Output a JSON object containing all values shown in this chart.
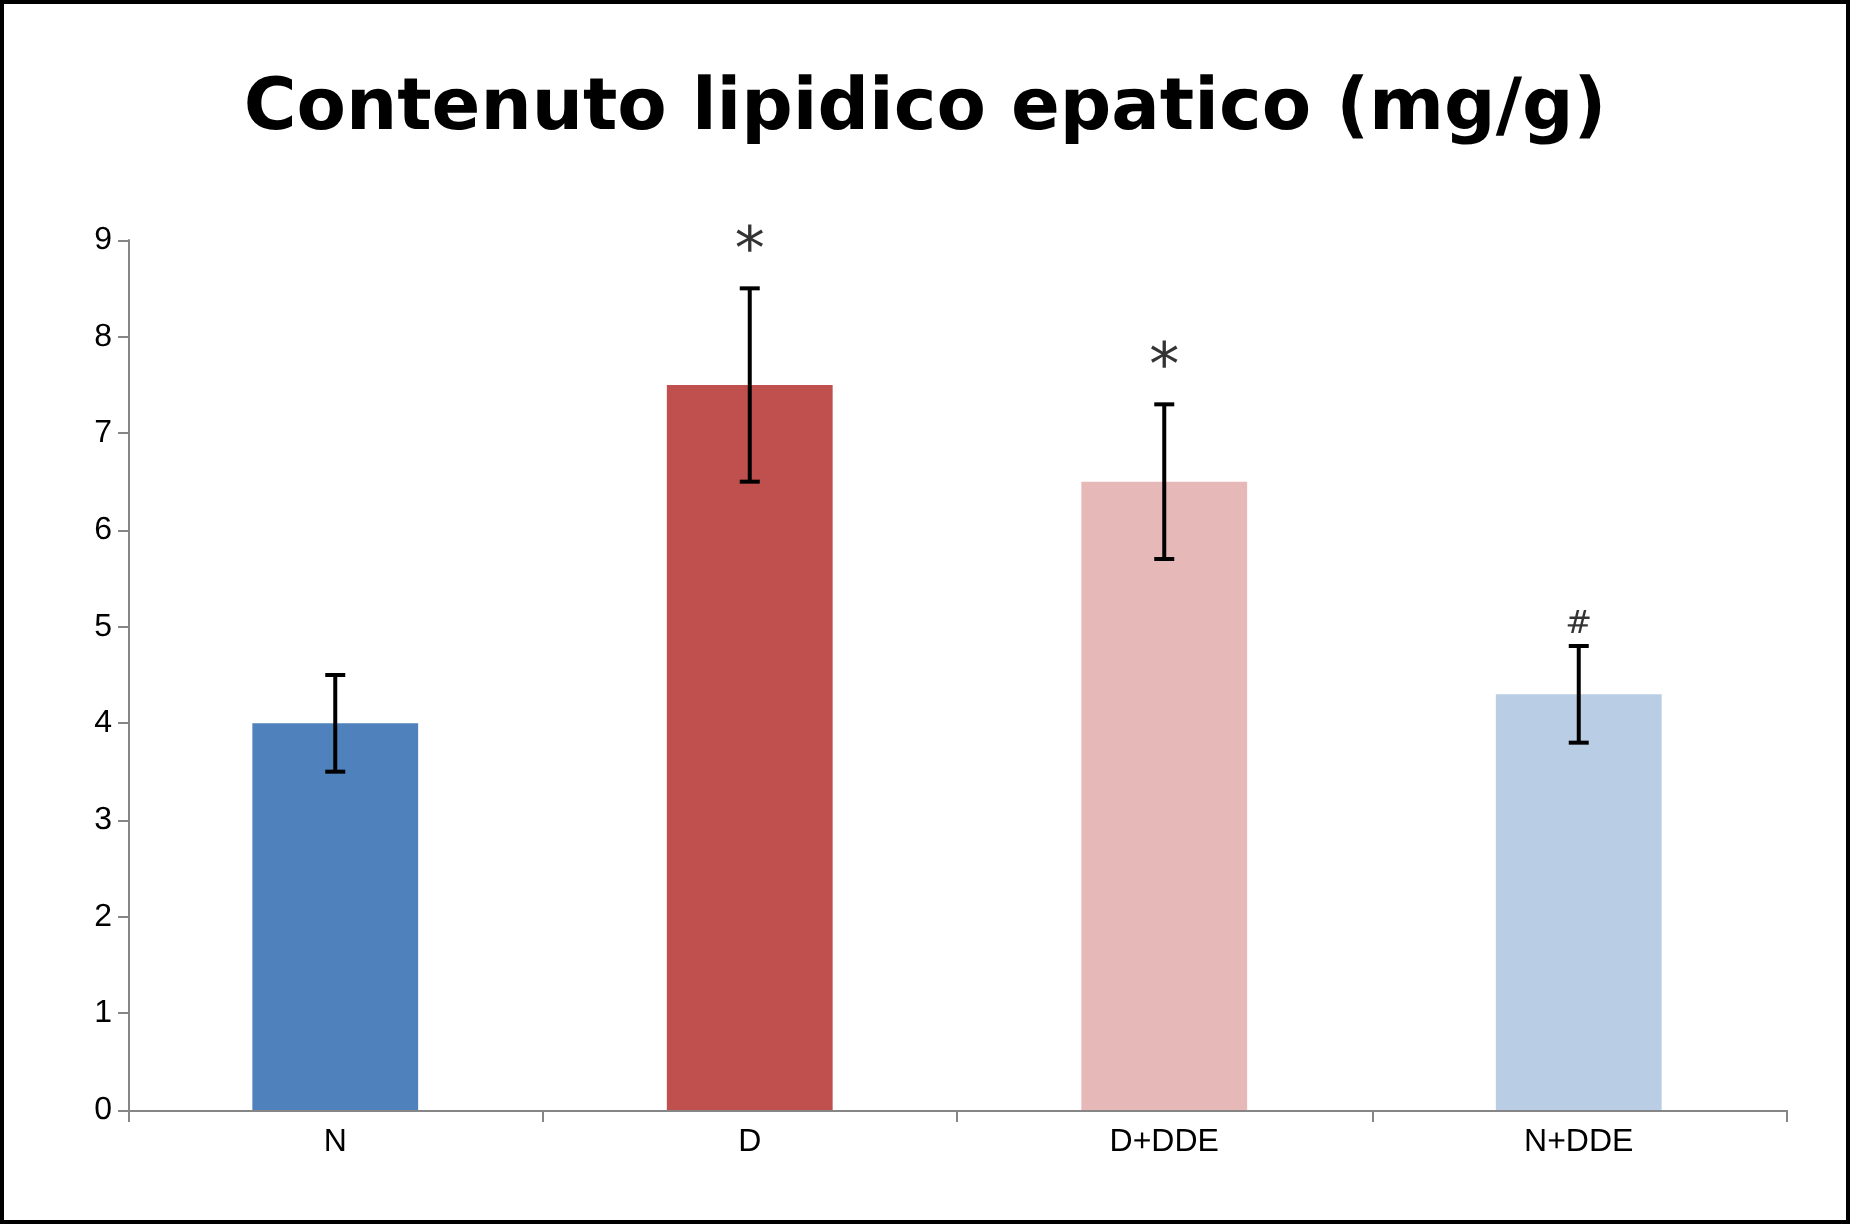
{
  "chart_data": {
    "type": "bar",
    "title": "Contenuto lipidico epatico (mg/g)",
    "categories": [
      "N",
      "D",
      "D+DDE",
      "N+DDE"
    ],
    "values": [
      4,
      7.5,
      6.5,
      4.3
    ],
    "colors": [
      "#4f81bd",
      "#c0504d",
      "#e6b9b8",
      "#b9cde5"
    ],
    "errors": [
      0.5,
      1.0,
      0.8,
      0.5
    ],
    "ylim": [
      0,
      9
    ],
    "yticks": [
      0,
      1,
      2,
      3,
      4,
      5,
      6,
      7,
      8,
      9
    ],
    "annotations": [
      {
        "text": "*",
        "x": "D",
        "y": 8.5
      },
      {
        "text": "*",
        "x": "D+DDE",
        "y": 7.3
      },
      {
        "text": "#",
        "x": "N+DDE",
        "y": 4.8
      }
    ]
  }
}
